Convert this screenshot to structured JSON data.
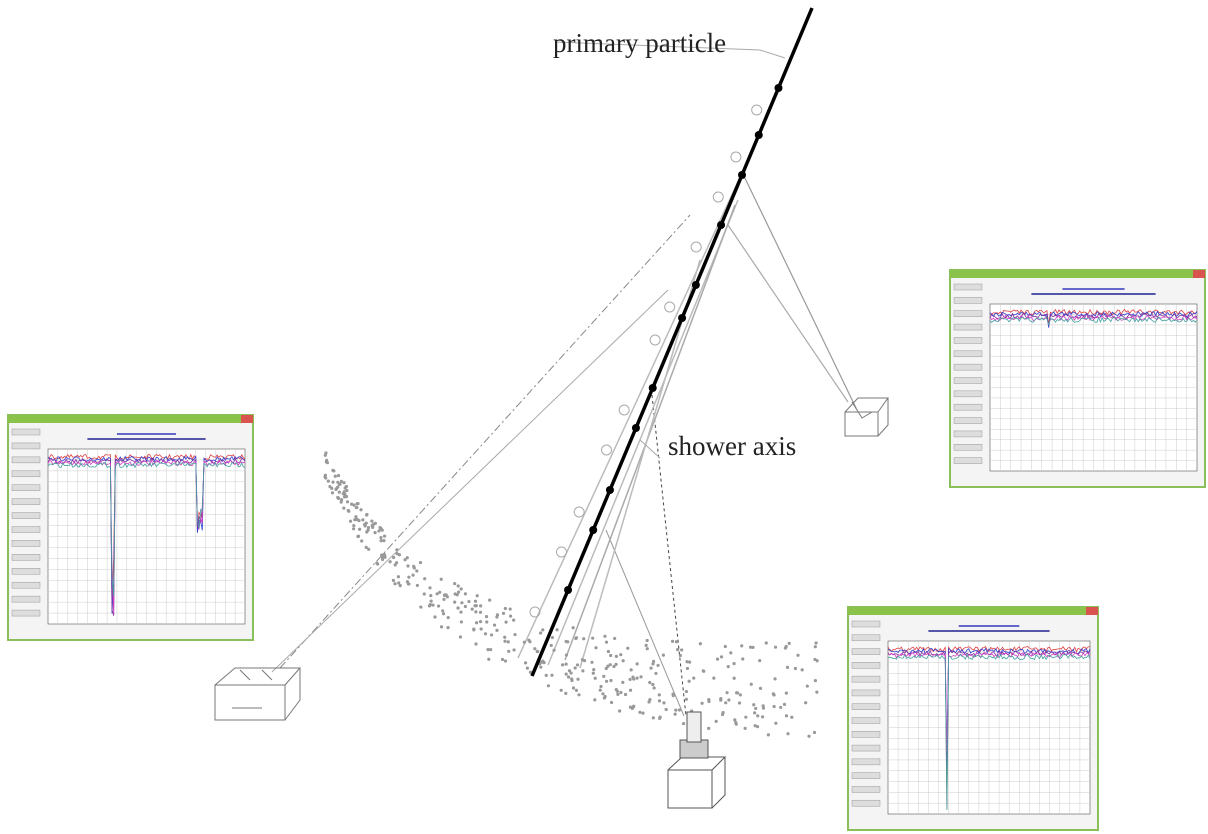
{
  "labels": {
    "primary_particle": "primary particle",
    "shower_axis": "shower axis"
  }
}
